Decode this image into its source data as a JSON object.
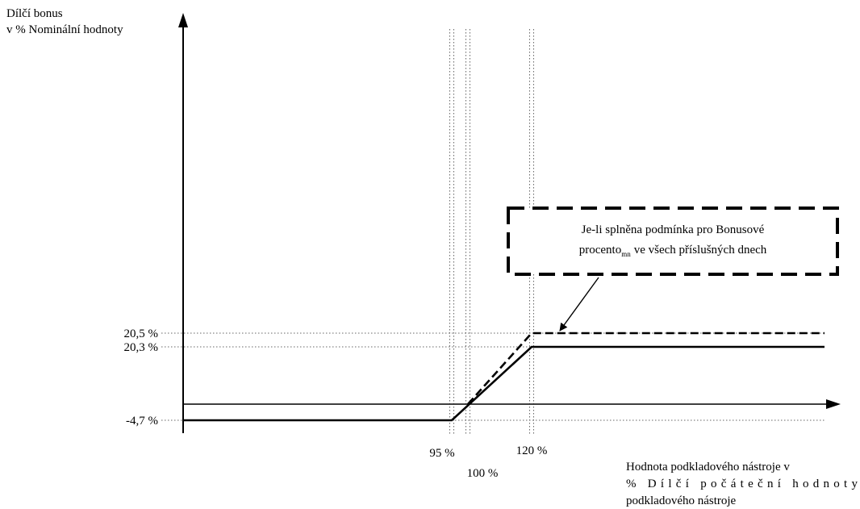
{
  "chart_data": {
    "type": "line",
    "y_axis_title": [
      "Dílčí bonus",
      "v % Nominální hodnoty"
    ],
    "x_axis_title": [
      "Hodnota podkladového nástroje v",
      "% Dílčí počáteční hodnoty",
      "podkladového nástroje"
    ],
    "x_ticks": [
      {
        "value": 95,
        "label": "95 %"
      },
      {
        "value": 100,
        "label": "100 %"
      },
      {
        "value": 120,
        "label": "120 %"
      }
    ],
    "y_ticks": [
      {
        "value": 20.5,
        "label": "20,5 %"
      },
      {
        "value": 20.3,
        "label": "20,3 %"
      },
      {
        "value": -4.7,
        "label": "-4,7 %"
      }
    ],
    "series": [
      {
        "style": "solid",
        "points": [
          [
            0,
            -4.7
          ],
          [
            95,
            -4.7
          ],
          [
            120,
            20.3
          ],
          [
            200,
            20.3
          ]
        ]
      },
      {
        "style": "dashed",
        "points": [
          [
            100,
            0
          ],
          [
            120,
            20.5
          ],
          [
            200,
            20.5
          ]
        ]
      }
    ],
    "annotation": {
      "lines": [
        "Je-li splněna podmínka pro Bonusové",
        "procento",
        "ve všech příslušných dnech"
      ],
      "subscript": "mn",
      "points_to": [
        120,
        20.5
      ]
    },
    "grid": "dotted reference lines at the labeled ticks"
  }
}
